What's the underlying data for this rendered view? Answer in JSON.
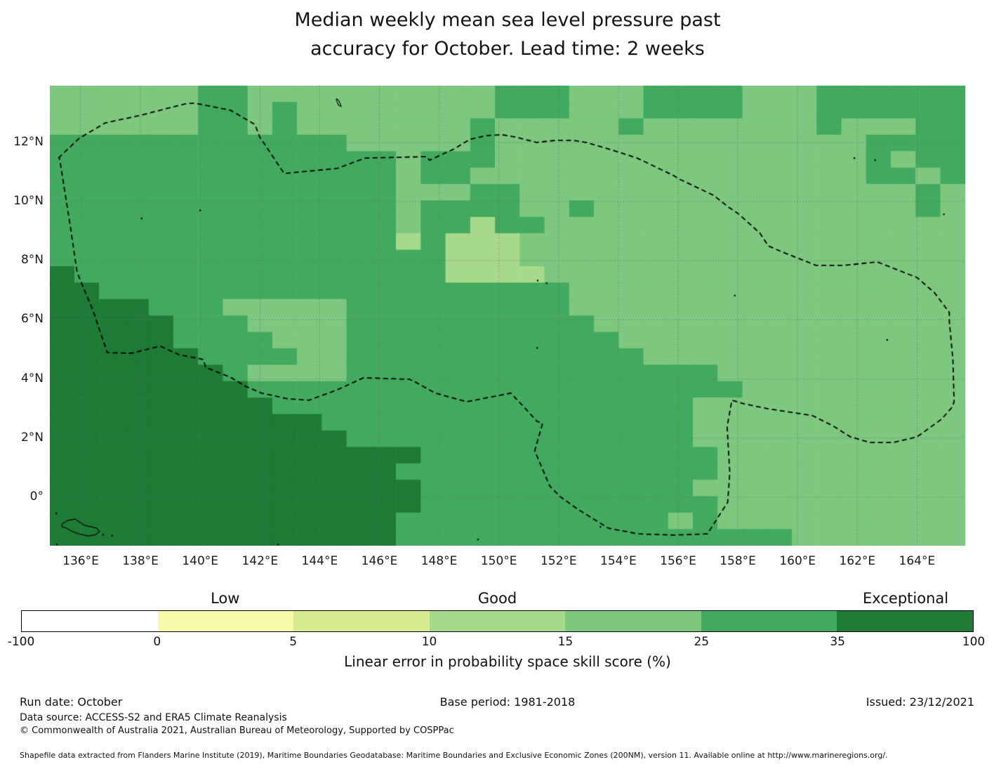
{
  "title": {
    "line1": "Median weekly mean sea level pressure past",
    "line2": "accuracy for October. Lead time: 2 weeks"
  },
  "chart_data": {
    "type": "heatmap",
    "title": "Median weekly mean sea level pressure past accuracy for October. Lead time: 2 weeks",
    "variable": "Linear error in probability space skill score (%)",
    "map_extent": {
      "lon_min": 134.97,
      "lon_max": 165.62,
      "lat_min": -1.64,
      "lat_max": 13.92
    },
    "x_axis": {
      "ticks": [
        {
          "label": "136°E",
          "lon": 136
        },
        {
          "label": "138°E",
          "lon": 138
        },
        {
          "label": "140°E",
          "lon": 140
        },
        {
          "label": "142°E",
          "lon": 142
        },
        {
          "label": "144°E",
          "lon": 144
        },
        {
          "label": "146°E",
          "lon": 146
        },
        {
          "label": "148°E",
          "lon": 148
        },
        {
          "label": "150°E",
          "lon": 150
        },
        {
          "label": "152°E",
          "lon": 152
        },
        {
          "label": "154°E",
          "lon": 154
        },
        {
          "label": "156°E",
          "lon": 156
        },
        {
          "label": "158°E",
          "lon": 158
        },
        {
          "label": "160°E",
          "lon": 160
        },
        {
          "label": "162°E",
          "lon": 162
        },
        {
          "label": "164°E",
          "lon": 164
        }
      ]
    },
    "y_axis": {
      "ticks": [
        {
          "label": "12°N",
          "lat": 12
        },
        {
          "label": "10°N",
          "lat": 10
        },
        {
          "label": "8°N",
          "lat": 8
        },
        {
          "label": "6°N",
          "lat": 6
        },
        {
          "label": "4°N",
          "lat": 4
        },
        {
          "label": "2°N",
          "lat": 2
        },
        {
          "label": "0°",
          "lat": 0
        }
      ]
    },
    "colorbar": {
      "boundary_labels": [
        "-100",
        "0",
        "5",
        "10",
        "15",
        "25",
        "35",
        "100"
      ],
      "segment_colors": [
        "#ffffff",
        "#f6f9a8",
        "#d6ea90",
        "#a7d98a",
        "#7dc77e",
        "#42aa5e",
        "#1e7b35"
      ],
      "category_labels": [
        {
          "text": "Low",
          "segment": 1
        },
        {
          "text": "Good",
          "segment": 3
        },
        {
          "text": "Exceptional",
          "segment": 6
        }
      ],
      "xlabel": "Linear error in probability space skill score (%)"
    },
    "skill_bins": {
      "1": "10-15",
      "2": "15-25",
      "3": "25-35",
      "4": "35-100"
    },
    "palette": {
      "1": "#a7d98a",
      "2": "#7dc77e",
      "3": "#42aa5e",
      "4": "#1e7b35"
    },
    "grid": {
      "ncols": 37,
      "nrows": 28,
      "lon0": 134.97,
      "dlon": 0.8285,
      "lat0": 13.92,
      "dlat": 0.5559,
      "rows": [
        "2222223322222222223332223333222333333",
        "2222223323222222223332223333222333333",
        "2222223323222222232222232222222322233",
        "3333333333332222232222222222222223333",
        "3333333333333323332222222222222223233",
        "3333333333333323322222222222222223323",
        "3333333333333322233222222222222222232",
        "3333333333333323333223222222222222232",
        "3333333333333323313322222222222222222",
        "3333333333333313111222222222222222222",
        "3333333333333333111222222222222222222",
        "4333333333333333111122222222222222222",
        "4433333333333333333332222222222222222",
        "4444333222223333333332222222222222222",
        "4444433322223333333333222222222222222",
        "4444433332223333333333322222222222222",
        "4444443333223333333333332222222222222",
        "4444444322223333333333333332222222222",
        "4444444433333333333333333333222222222",
        "4444444443333333333333333322222222222",
        "4444444444433333333333333322222222222",
        "4444444444443333333333333322222222222",
        "4444444444444443333333333332222222222",
        "4444444444444433333333333332222222222",
        "4444444444444443333333333322222222222",
        "4444444444444443333333333332222222222",
        "4444444444444433333333333232222222222",
        "4444444444444433333333333333332222222"
      ]
    },
    "eez_boundary": [
      [
        135.25,
        11.47
      ],
      [
        135.95,
        12.14
      ],
      [
        136.82,
        12.66
      ],
      [
        137.93,
        12.9
      ],
      [
        139.48,
        13.3
      ],
      [
        139.81,
        13.33
      ],
      [
        141.01,
        13.09
      ],
      [
        141.83,
        12.61
      ],
      [
        141.99,
        12.19
      ],
      [
        142.81,
        10.95
      ],
      [
        144.58,
        11.12
      ],
      [
        145.52,
        11.47
      ],
      [
        147.58,
        11.52
      ],
      [
        147.68,
        11.4
      ],
      [
        148.5,
        11.78
      ],
      [
        149.04,
        12.11
      ],
      [
        149.58,
        12.23
      ],
      [
        150.1,
        12.26
      ],
      [
        150.52,
        12.19
      ],
      [
        151.27,
        12.0
      ],
      [
        151.91,
        12.07
      ],
      [
        152.49,
        12.07
      ],
      [
        152.92,
        12.0
      ],
      [
        153.67,
        11.78
      ],
      [
        154.63,
        11.47
      ],
      [
        155.85,
        10.88
      ],
      [
        156.04,
        10.76
      ],
      [
        157.19,
        10.21
      ],
      [
        157.69,
        9.81
      ],
      [
        158.04,
        9.57
      ],
      [
        158.74,
        8.93
      ],
      [
        159.02,
        8.5
      ],
      [
        159.45,
        8.31
      ],
      [
        160.62,
        7.84
      ],
      [
        161.56,
        7.84
      ],
      [
        162.66,
        7.96
      ],
      [
        164.0,
        7.43
      ],
      [
        164.59,
        6.91
      ],
      [
        165.08,
        6.25
      ],
      [
        165.08,
        5.94
      ],
      [
        165.2,
        4.66
      ],
      [
        165.24,
        3.23
      ],
      [
        165.17,
        3.04
      ],
      [
        164.82,
        2.64
      ],
      [
        164.0,
        2.04
      ],
      [
        163.2,
        1.85
      ],
      [
        162.43,
        1.85
      ],
      [
        161.77,
        2.04
      ],
      [
        161.21,
        2.4
      ],
      [
        160.5,
        2.76
      ],
      [
        160.25,
        2.8
      ],
      [
        159.02,
        2.99
      ],
      [
        158.2,
        3.16
      ],
      [
        157.8,
        3.28
      ],
      [
        157.64,
        2.38
      ],
      [
        157.73,
        0.83
      ],
      [
        157.66,
        -0.17
      ],
      [
        156.98,
        -1.24
      ],
      [
        155.85,
        -1.28
      ],
      [
        154.68,
        -1.24
      ],
      [
        153.67,
        -1.05
      ],
      [
        152.63,
        -0.4
      ],
      [
        152.05,
        0.02
      ],
      [
        151.7,
        0.38
      ],
      [
        151.2,
        1.57
      ],
      [
        151.46,
        2.49
      ],
      [
        151.27,
        2.57
      ],
      [
        150.85,
        3.04
      ],
      [
        150.4,
        3.52
      ],
      [
        148.92,
        3.23
      ],
      [
        147.87,
        3.52
      ],
      [
        147.16,
        3.92
      ],
      [
        147.0,
        3.99
      ],
      [
        145.47,
        4.04
      ],
      [
        144.58,
        3.63
      ],
      [
        143.64,
        3.28
      ],
      [
        142.93,
        3.33
      ],
      [
        142.06,
        3.52
      ],
      [
        141.52,
        3.75
      ],
      [
        141.01,
        4.06
      ],
      [
        140.18,
        4.39
      ],
      [
        140.11,
        4.66
      ],
      [
        139.29,
        4.82
      ],
      [
        138.66,
        5.11
      ],
      [
        137.69,
        4.87
      ],
      [
        136.89,
        4.89
      ],
      [
        136.42,
        6.29
      ],
      [
        135.88,
        7.6
      ],
      [
        135.65,
        9.17
      ],
      [
        135.29,
        11.47
      ],
      [
        135.25,
        11.47
      ]
    ],
    "islands": {
      "outlines": [
        [
          [
            135.37,
            -0.9
          ],
          [
            135.58,
            -0.78
          ],
          [
            135.81,
            -0.74
          ],
          [
            135.95,
            -0.83
          ],
          [
            136.12,
            -0.95
          ],
          [
            136.35,
            -1.0
          ],
          [
            136.54,
            -1.05
          ],
          [
            136.63,
            -1.16
          ],
          [
            136.47,
            -1.28
          ],
          [
            136.24,
            -1.31
          ],
          [
            135.95,
            -1.24
          ],
          [
            135.72,
            -1.16
          ],
          [
            135.53,
            -1.05
          ],
          [
            135.37,
            -1.0
          ],
          [
            135.37,
            -0.9
          ]
        ],
        [
          [
            144.55,
            13.48
          ],
          [
            144.62,
            13.44
          ],
          [
            144.68,
            13.33
          ],
          [
            144.72,
            13.22
          ],
          [
            144.63,
            13.26
          ],
          [
            144.58,
            13.38
          ],
          [
            144.55,
            13.48
          ]
        ]
      ],
      "dots": [
        [
          138.04,
          9.43
        ],
        [
          140.0,
          9.7
        ],
        [
          151.3,
          7.33
        ],
        [
          151.6,
          7.24
        ],
        [
          157.9,
          6.82
        ],
        [
          163.0,
          5.32
        ],
        [
          161.9,
          11.47
        ],
        [
          162.6,
          11.4
        ],
        [
          164.9,
          9.57
        ],
        [
          151.28,
          5.05
        ],
        [
          149.3,
          -1.43
        ],
        [
          153.4,
          -1.0
        ],
        [
          136.75,
          -1.27
        ],
        [
          137.05,
          -1.3
        ],
        [
          135.18,
          -0.55
        ],
        [
          135.2,
          -1.6
        ],
        [
          142.6,
          -1.6
        ]
      ]
    },
    "layout": {
      "grid_on": true,
      "gridline_color": "#9a9a9a",
      "boundary_style": "dashed-black"
    }
  },
  "footer": {
    "run_date": "Run date: October",
    "base_period": "Base period: 1981-2018",
    "issued": "Issued: 23/12/2021",
    "data_source": "Data source: ACCESS-S2 and ERA5 Climate Reanalysis",
    "copyright": "© Commonwealth of Australia 2021, Australian Bureau of Meteorology, Supported by COSPPac",
    "shapefile": "Shapefile data extracted from Flanders Marine Institute (2019), Maritime Boundaries Geodatabase: Maritime Boundaries and Exclusive Economic Zones (200NM), version 11. Available online at http://www.marineregions.org/."
  }
}
